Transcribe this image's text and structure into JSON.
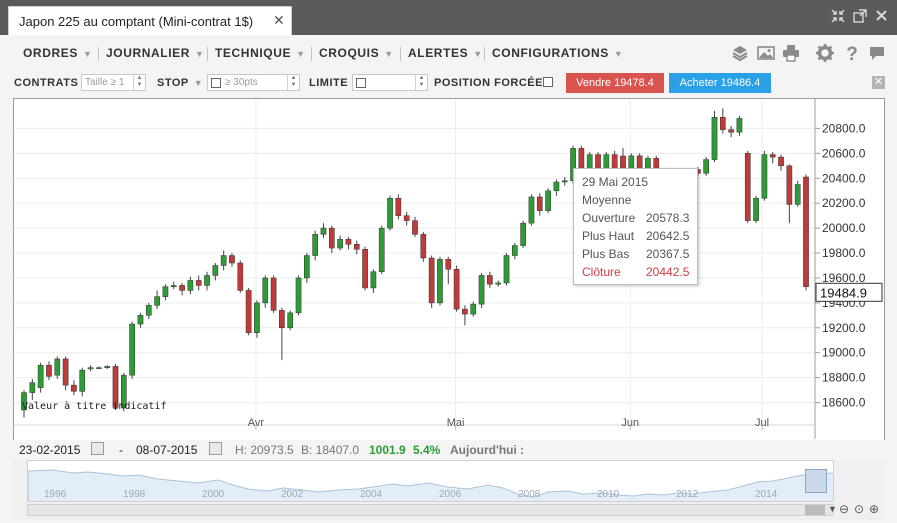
{
  "window": {
    "tab_title": "Japon 225 au comptant (Mini-contrat 1$)",
    "controls": [
      "collapse-icon",
      "popout-icon",
      "close-icon"
    ]
  },
  "menu": {
    "items": [
      "ORDRES",
      "JOURNALIER",
      "TECHNIQUE",
      "CROQUIS",
      "ALERTES",
      "CONFIGURATIONS"
    ],
    "icons": [
      "layers-icon",
      "image-icon",
      "print-icon",
      "gear-icon",
      "help-icon",
      "chat-icon"
    ]
  },
  "order_bar": {
    "contrats_label": "CONTRATS",
    "contrats_placeholder": "Taille ≥ 1",
    "stop_label": "STOP",
    "stop_placeholder": "≥ 30pts",
    "limite_label": "LIMITE",
    "position_label": "POSITION FORCÉE",
    "sell_label": "Vendre 19478.4",
    "buy_label": "Acheter 19486.4",
    "colors": {
      "sell": "#d9534f",
      "buy": "#2aa0e6"
    }
  },
  "chart_data": {
    "type": "candlestick",
    "note": "Valeur à titre indicatif",
    "x_labels": [
      "Avr",
      "Mai",
      "Jun",
      "Jul"
    ],
    "y_ticks": [
      18600.0,
      18800.0,
      19000.0,
      19200.0,
      19400.0,
      19600.0,
      19800.0,
      20000.0,
      20200.0,
      20400.0,
      20600.0,
      20800.0
    ],
    "ylim": [
      18420,
      21020
    ],
    "current_price": "19484.9",
    "current_price_value": 19484.9,
    "grid": true,
    "colors": {
      "up": "#2e9b37",
      "down": "#c03a3a",
      "crosshair": "#c03a3a"
    },
    "candles": [
      [
        18540,
        18680,
        18480,
        18700
      ],
      [
        18680,
        18760,
        18620,
        18790
      ],
      [
        18720,
        18900,
        18680,
        18920
      ],
      [
        18900,
        18810,
        18780,
        18930
      ],
      [
        18820,
        18950,
        18790,
        18970
      ],
      [
        18950,
        18740,
        18700,
        18970
      ],
      [
        18740,
        18690,
        18660,
        18780
      ],
      [
        18690,
        18860,
        18650,
        18880
      ],
      [
        18870,
        18880,
        18850,
        18900
      ],
      [
        18880,
        18880,
        18870,
        18890
      ],
      [
        18880,
        18890,
        18870,
        18900
      ],
      [
        18890,
        18560,
        18540,
        18910
      ],
      [
        18560,
        18820,
        18530,
        18840
      ],
      [
        18820,
        19230,
        18790,
        19250
      ],
      [
        19230,
        19300,
        19200,
        19320
      ],
      [
        19300,
        19380,
        19270,
        19400
      ],
      [
        19380,
        19450,
        19350,
        19500
      ],
      [
        19450,
        19530,
        19420,
        19550
      ],
      [
        19530,
        19540,
        19510,
        19570
      ],
      [
        19540,
        19500,
        19460,
        19560
      ],
      [
        19500,
        19580,
        19470,
        19610
      ],
      [
        19580,
        19540,
        19500,
        19620
      ],
      [
        19540,
        19620,
        19500,
        19650
      ],
      [
        19620,
        19700,
        19580,
        19720
      ],
      [
        19700,
        19780,
        19660,
        19820
      ],
      [
        19780,
        19720,
        19690,
        19800
      ],
      [
        19720,
        19500,
        19480,
        19740
      ],
      [
        19500,
        19160,
        19140,
        19520
      ],
      [
        19160,
        19400,
        19120,
        19420
      ],
      [
        19400,
        19600,
        19360,
        19620
      ],
      [
        19600,
        19340,
        19320,
        19620
      ],
      [
        19340,
        19200,
        18940,
        19360
      ],
      [
        19200,
        19320,
        19180,
        19340
      ],
      [
        19320,
        19600,
        19300,
        19620
      ],
      [
        19600,
        19780,
        19560,
        19800
      ],
      [
        19780,
        19950,
        19740,
        19980
      ],
      [
        19950,
        20000,
        19920,
        20040
      ],
      [
        20000,
        19840,
        19800,
        20020
      ],
      [
        19840,
        19910,
        19820,
        19940
      ],
      [
        19910,
        19870,
        19830,
        19930
      ],
      [
        19870,
        19830,
        19790,
        19900
      ],
      [
        19830,
        19520,
        19500,
        19850
      ],
      [
        19520,
        19650,
        19480,
        19670
      ],
      [
        19650,
        20000,
        19630,
        20020
      ],
      [
        20000,
        20240,
        19980,
        20260
      ],
      [
        20240,
        20100,
        20070,
        20270
      ],
      [
        20100,
        20060,
        20020,
        20130
      ],
      [
        20060,
        19950,
        19930,
        20090
      ],
      [
        19950,
        19760,
        19730,
        19970
      ],
      [
        19760,
        19400,
        19360,
        19780
      ],
      [
        19400,
        19750,
        19380,
        19770
      ],
      [
        19750,
        19670,
        19550,
        19770
      ],
      [
        19670,
        19350,
        19330,
        19700
      ],
      [
        19350,
        19310,
        19220,
        19380
      ],
      [
        19310,
        19390,
        19290,
        19410
      ],
      [
        19390,
        19620,
        19360,
        19640
      ],
      [
        19620,
        19550,
        19520,
        19650
      ],
      [
        19550,
        19560,
        19530,
        19580
      ],
      [
        19560,
        19780,
        19540,
        19800
      ],
      [
        19780,
        19860,
        19750,
        19880
      ],
      [
        19860,
        20040,
        19840,
        20060
      ],
      [
        20040,
        20250,
        20020,
        20270
      ],
      [
        20250,
        20140,
        20100,
        20280
      ],
      [
        20140,
        20300,
        20120,
        20320
      ],
      [
        20300,
        20370,
        20260,
        20390
      ],
      [
        20370,
        20380,
        20340,
        20410
      ],
      [
        20380,
        20640,
        20360,
        20660
      ],
      [
        20640,
        20430,
        20410,
        20660
      ],
      [
        20430,
        20590,
        20400,
        20610
      ],
      [
        20590,
        20440,
        20410,
        20610
      ],
      [
        20440,
        20590,
        20410,
        20610
      ],
      [
        20590,
        20430,
        20400,
        20620
      ],
      [
        20578.3,
        20442.5,
        20367.5,
        20642.5
      ],
      [
        20440,
        20580,
        20410,
        20600
      ],
      [
        20580,
        20450,
        20420,
        20600
      ],
      [
        20450,
        20560,
        20420,
        20580
      ],
      [
        20560,
        20420,
        20380,
        20580
      ],
      [
        20430,
        20450,
        20400,
        20470
      ],
      [
        20450,
        20430,
        20410,
        20470
      ],
      [
        20430,
        20440,
        20400,
        20460
      ],
      [
        20440,
        20470,
        20420,
        20480
      ],
      [
        20470,
        20440,
        20420,
        20490
      ],
      [
        20440,
        20550,
        20420,
        20570
      ],
      [
        20550,
        20890,
        20530,
        20940
      ],
      [
        20890,
        20790,
        20760,
        20960
      ],
      [
        20790,
        20770,
        20730,
        20820
      ],
      [
        20770,
        20880,
        20740,
        20900
      ],
      [
        20600,
        20060,
        20040,
        20620
      ],
      [
        20060,
        20240,
        20040,
        20260
      ],
      [
        20240,
        20590,
        20220,
        20620
      ],
      [
        20590,
        20570,
        20520,
        20610
      ],
      [
        20570,
        20500,
        20460,
        20590
      ],
      [
        20500,
        20190,
        20040,
        20510
      ],
      [
        20190,
        20350,
        20170,
        20380
      ],
      [
        20410,
        19530,
        19500,
        20430
      ]
    ]
  },
  "tooltip": {
    "date": "29 Mai 2015",
    "subtitle": "Moyenne",
    "rows": [
      {
        "label": "Ouverture",
        "value": "20578.3"
      },
      {
        "label": "Plus Haut",
        "value": "20642.5"
      },
      {
        "label": "Plus Bas",
        "value": "20367.5"
      },
      {
        "label": "Clôture",
        "value": "20442.5"
      }
    ]
  },
  "info_bar": {
    "from_date": "23-02-2015",
    "dash": "-",
    "to_date": "08-07-2015",
    "high": "H: 20973.5",
    "low": "B: 18407.0",
    "change": "1001.9",
    "change_pct": "5.4%",
    "today_label": "Aujourd'hui :"
  },
  "navigator": {
    "years": [
      "1996",
      "1998",
      "2000",
      "2002",
      "2004",
      "2006",
      "2008",
      "2010",
      "2012",
      "2014"
    ]
  }
}
